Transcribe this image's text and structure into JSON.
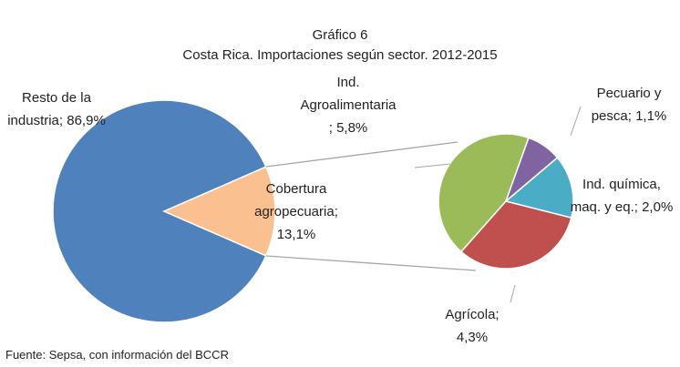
{
  "chart_data": {
    "type": "pie",
    "title": "Gráfico 6",
    "subtitle": "Costa Rica. Importaciones según sector. 2012-2015",
    "note": "Fuente: Sepsa, con información del BCCR",
    "label_separator": ";",
    "categories": [
      "Resto de la industria",
      "Cobertura agropecuaria"
    ],
    "values": [
      86.9,
      13.1
    ],
    "value_labels": [
      "86,9%",
      "13,1%"
    ],
    "colors": [
      "#4f81bd",
      "#fac090"
    ],
    "secondary": {
      "categories": [
        "Ind. Agroalimentaria",
        "Pecuario y pesca",
        "Ind. química, maq. y eq.",
        "Agrícola"
      ],
      "values": [
        5.8,
        1.1,
        2.0,
        4.3
      ],
      "value_labels": [
        "5,8%",
        "1,1%",
        "2,0%",
        "4,3%"
      ],
      "colors": [
        "#9bbb59",
        "#8064a2",
        "#4bacc6",
        "#c0504d"
      ]
    }
  }
}
